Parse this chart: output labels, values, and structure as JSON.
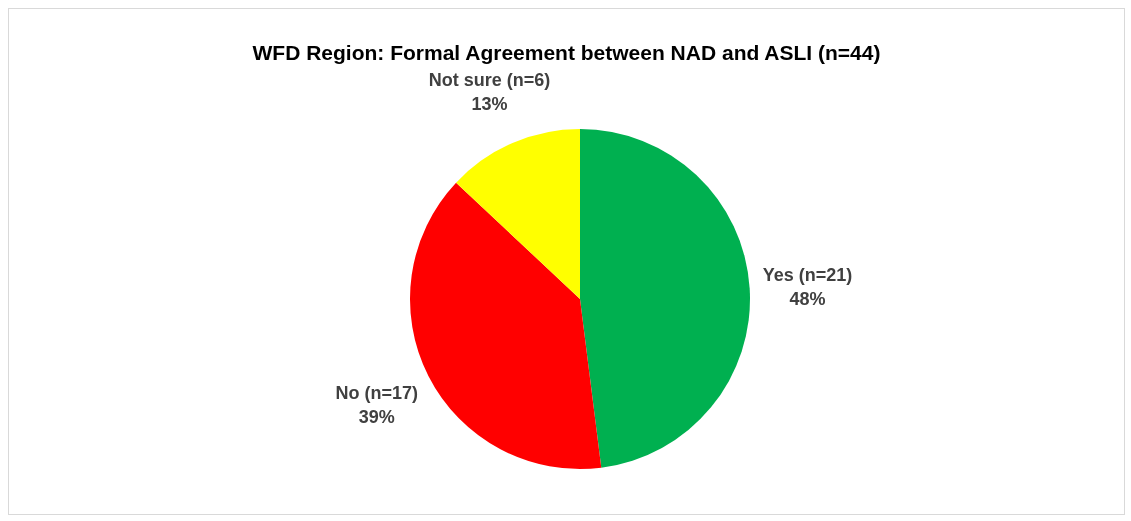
{
  "chart_data": {
    "type": "pie",
    "title": "WFD Region: Formal Agreement between NAD and ASLI (n=44)",
    "categories": [
      "Yes (n=21)",
      "No (n=17)",
      "Not sure (n=6)"
    ],
    "values": [
      48,
      39,
      13
    ],
    "colors": [
      "#00b050",
      "#ff0000",
      "#ffff00"
    ],
    "value_labels": [
      "48%",
      "39%",
      "13%"
    ]
  }
}
